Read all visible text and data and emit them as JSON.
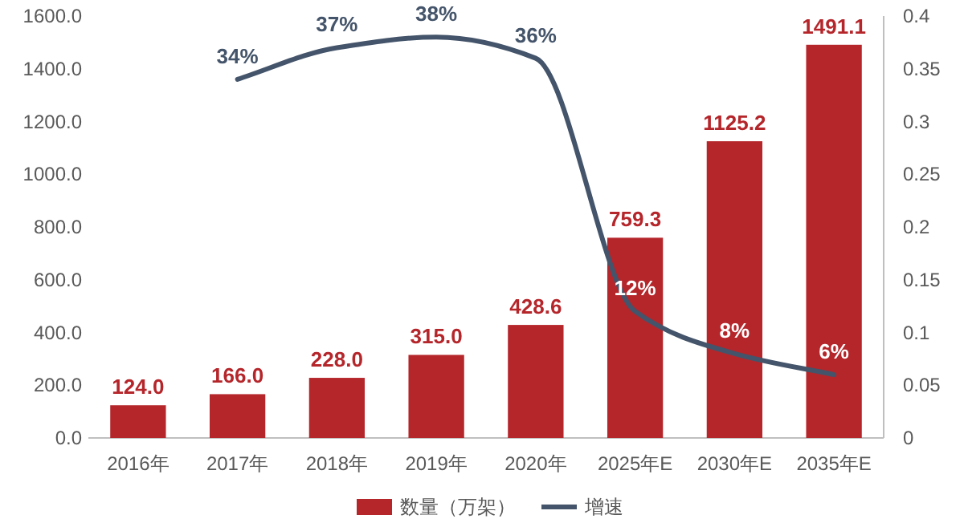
{
  "chart_data": {
    "type": "bar",
    "categories": [
      "2016年",
      "2017年",
      "2018年",
      "2019年",
      "2020年",
      "2025年E",
      "2030年E",
      "2035年E"
    ],
    "series": [
      {
        "name": "数量（万架）",
        "color": "#b5262b",
        "values": [
          124.0,
          166.0,
          228.0,
          315.0,
          428.6,
          759.3,
          1125.2,
          1491.1
        ],
        "value_labels": [
          "124.0",
          "166.0",
          "228.0",
          "315.0",
          "428.6",
          "759.3",
          "1125.2",
          "1491.1"
        ]
      },
      {
        "name": "增速",
        "type": "line",
        "axis": "y2",
        "color": "#44546a",
        "values": [
          null,
          0.34,
          0.37,
          0.38,
          0.36,
          0.12,
          0.08,
          0.06
        ],
        "value_labels": [
          null,
          "34%",
          "37%",
          "38%",
          "36%",
          "12%",
          "8%",
          "6%"
        ]
      }
    ],
    "ylim": [
      0,
      1600
    ],
    "yticks": [
      {
        "value": 0,
        "label": "0.0"
      },
      {
        "value": 200,
        "label": "200.0"
      },
      {
        "value": 400,
        "label": "400.0"
      },
      {
        "value": 600,
        "label": "600.0"
      },
      {
        "value": 800,
        "label": "800.0"
      },
      {
        "value": 1000,
        "label": "1000.0"
      },
      {
        "value": 1200,
        "label": "1200.0"
      },
      {
        "value": 1400,
        "label": "1400.0"
      },
      {
        "value": 1600,
        "label": "1600.0"
      }
    ],
    "y2lim": [
      0,
      0.4
    ],
    "y2ticks": [
      0,
      0.05,
      0.1,
      0.15,
      0.2,
      0.25,
      0.3,
      0.35,
      0.4
    ],
    "legend": "bottom"
  }
}
